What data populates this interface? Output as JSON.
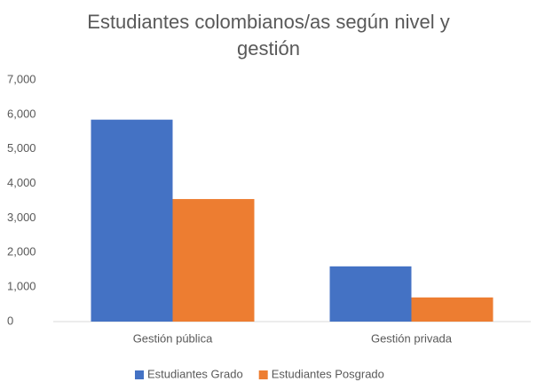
{
  "chart_data": {
    "type": "bar",
    "title": "Estudiantes colombianos/as según nivel y gestión",
    "categories": [
      "Gestión pública",
      "Gestión privada"
    ],
    "series": [
      {
        "name": "Estudiantes Grado",
        "color": "#4472c4",
        "values": [
          5850,
          1600
        ]
      },
      {
        "name": "Estudiantes Posgrado",
        "color": "#ed7d31",
        "values": [
          3550,
          700
        ]
      }
    ],
    "ylim": [
      0,
      7000
    ],
    "yticks": [
      0,
      {
        "value": 1000,
        "label": "1,000"
      },
      {
        "value": 2000,
        "label": "2,000"
      },
      {
        "value": 3000,
        "label": "3,000"
      },
      {
        "value": 4000,
        "label": "4,000"
      },
      {
        "value": 5000,
        "label": "5,000"
      },
      {
        "value": 6000,
        "label": "6,000"
      },
      {
        "value": 7000,
        "label": "7,000"
      }
    ],
    "grid": false,
    "legend": "bottom"
  }
}
